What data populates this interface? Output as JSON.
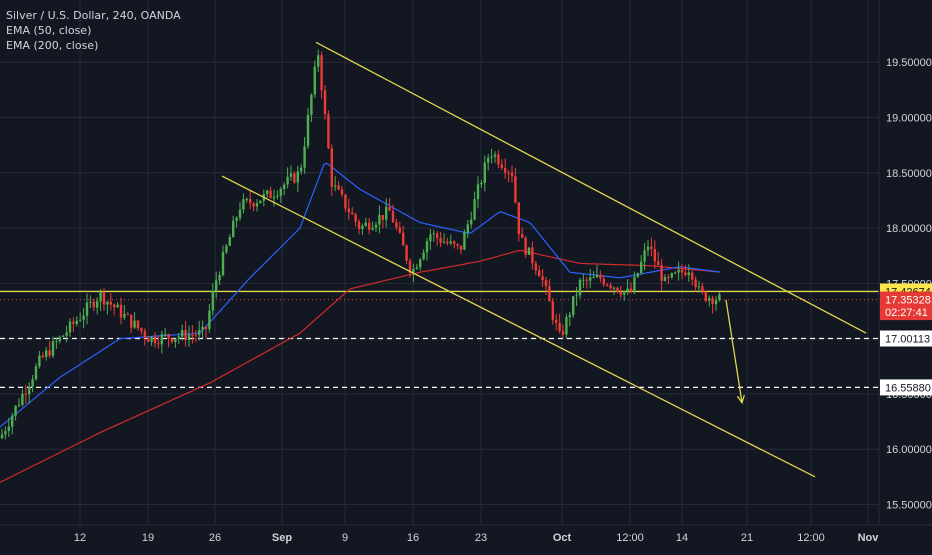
{
  "legend": {
    "title": "Silver / U.S. Dollar, 240, OANDA",
    "ema50": "EMA (50, close)",
    "ema200": "EMA (200, close)"
  },
  "colors": {
    "background": "#131722",
    "grid": "#262b38",
    "text": "#d1d4dc",
    "up": "#4caf50",
    "down": "#ef3b34",
    "ema50": "#2962ff",
    "ema200": "#d22b2b",
    "channel": "#e0d84a",
    "support": "#ffffff"
  },
  "chart_data": {
    "type": "candlestick",
    "title": "Silver / U.S. Dollar, 240, OANDA",
    "ylim": [
      15.45,
      19.9
    ],
    "x_ticks": [
      "12",
      "19",
      "26",
      "Sep",
      "9",
      "16",
      "23",
      "Oct",
      "12:00",
      "14",
      "21",
      "12:00",
      "Nov"
    ],
    "y_ticks": [
      "15.50000",
      "16.00000",
      "16.50000",
      "17.00000",
      "17.50000",
      "18.00000",
      "18.50000",
      "19.00000",
      "19.50000"
    ],
    "price_labels": [
      {
        "text": "17.42674",
        "value": 17.42674,
        "style": "yellow"
      },
      {
        "text": "17.35328",
        "value": 17.35328,
        "style": "red"
      },
      {
        "text": "02:27:41",
        "value": 17.24,
        "style": "red"
      },
      {
        "text": "17.00113",
        "value": 17.00113,
        "style": "white"
      },
      {
        "text": "16.55880",
        "value": 16.5588,
        "style": "white"
      }
    ],
    "horizontal_levels": [
      {
        "value": 17.42674,
        "style": "solid",
        "color": "yellow"
      },
      {
        "value": 17.00113,
        "style": "dashed",
        "color": "white"
      },
      {
        "value": 16.5588,
        "style": "dashed",
        "color": "white"
      }
    ],
    "anchors": [
      {
        "t": 0,
        "p": 16.1
      },
      {
        "t": 40,
        "p": 16.8
      },
      {
        "t": 100,
        "p": 17.4
      },
      {
        "t": 150,
        "p": 17.0
      },
      {
        "t": 205,
        "p": 17.05
      },
      {
        "t": 215,
        "p": 17.5
      },
      {
        "t": 240,
        "p": 18.2
      },
      {
        "t": 270,
        "p": 18.3
      },
      {
        "t": 300,
        "p": 18.5
      },
      {
        "t": 318,
        "p": 19.6
      },
      {
        "t": 332,
        "p": 18.4
      },
      {
        "t": 360,
        "p": 18.0
      },
      {
        "t": 390,
        "p": 18.15
      },
      {
        "t": 412,
        "p": 17.6
      },
      {
        "t": 430,
        "p": 17.95
      },
      {
        "t": 460,
        "p": 17.8
      },
      {
        "t": 490,
        "p": 18.7
      },
      {
        "t": 512,
        "p": 18.5
      },
      {
        "t": 520,
        "p": 17.9
      },
      {
        "t": 540,
        "p": 17.6
      },
      {
        "t": 560,
        "p": 17.0
      },
      {
        "t": 580,
        "p": 17.5
      },
      {
        "t": 600,
        "p": 17.55
      },
      {
        "t": 630,
        "p": 17.4
      },
      {
        "t": 648,
        "p": 17.85
      },
      {
        "t": 665,
        "p": 17.5
      },
      {
        "t": 690,
        "p": 17.65
      },
      {
        "t": 700,
        "p": 17.4
      },
      {
        "t": 722,
        "p": 17.35
      }
    ],
    "ema50": [
      {
        "t": 0,
        "p": 16.2
      },
      {
        "t": 60,
        "p": 16.65
      },
      {
        "t": 120,
        "p": 17.0
      },
      {
        "t": 200,
        "p": 17.05
      },
      {
        "t": 250,
        "p": 17.55
      },
      {
        "t": 300,
        "p": 18.0
      },
      {
        "t": 325,
        "p": 18.6
      },
      {
        "t": 360,
        "p": 18.35
      },
      {
        "t": 420,
        "p": 18.05
      },
      {
        "t": 470,
        "p": 17.95
      },
      {
        "t": 500,
        "p": 18.15
      },
      {
        "t": 530,
        "p": 18.05
      },
      {
        "t": 570,
        "p": 17.6
      },
      {
        "t": 620,
        "p": 17.55
      },
      {
        "t": 680,
        "p": 17.65
      },
      {
        "t": 722,
        "p": 17.6
      }
    ],
    "ema200": [
      {
        "t": 0,
        "p": 15.7
      },
      {
        "t": 100,
        "p": 16.15
      },
      {
        "t": 210,
        "p": 16.6
      },
      {
        "t": 300,
        "p": 17.05
      },
      {
        "t": 350,
        "p": 17.45
      },
      {
        "t": 420,
        "p": 17.6
      },
      {
        "t": 480,
        "p": 17.7
      },
      {
        "t": 520,
        "p": 17.8
      },
      {
        "t": 580,
        "p": 17.68
      },
      {
        "t": 650,
        "p": 17.66
      },
      {
        "t": 722,
        "p": 17.6
      }
    ],
    "channel_upper": [
      {
        "t": 316,
        "p": 19.68
      },
      {
        "t": 866,
        "p": 17.05
      }
    ],
    "channel_lower": [
      {
        "t": 222,
        "p": 18.47
      },
      {
        "t": 815,
        "p": 15.75
      }
    ],
    "projection": [
      {
        "t": 726,
        "p": 17.35
      },
      {
        "t": 742,
        "p": 16.42
      }
    ]
  }
}
